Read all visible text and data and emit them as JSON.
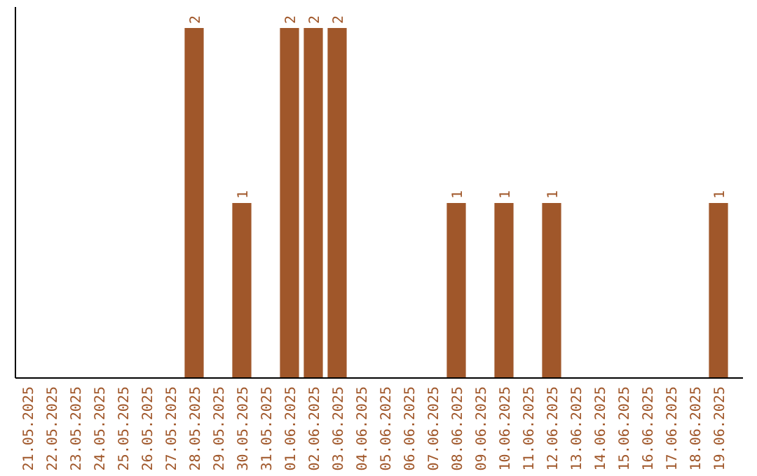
{
  "chart_data": {
    "type": "bar",
    "categories": [
      "21.05.2025",
      "22.05.2025",
      "23.05.2025",
      "24.05.2025",
      "25.05.2025",
      "26.05.2025",
      "27.05.2025",
      "28.05.2025",
      "29.05.2025",
      "30.05.2025",
      "31.05.2025",
      "01.06.2025",
      "02.06.2025",
      "03.06.2025",
      "04.06.2025",
      "05.06.2025",
      "06.06.2025",
      "07.06.2025",
      "08.06.2025",
      "09.06.2025",
      "10.06.2025",
      "11.06.2025",
      "12.06.2025",
      "13.06.2025",
      "14.06.2025",
      "15.06.2025",
      "16.06.2025",
      "17.06.2025",
      "18.06.2025",
      "19.06.2025"
    ],
    "values": [
      0,
      0,
      0,
      0,
      0,
      0,
      0,
      2,
      0,
      1,
      0,
      2,
      2,
      2,
      0,
      0,
      0,
      0,
      1,
      0,
      1,
      0,
      1,
      0,
      0,
      0,
      0,
      0,
      0,
      1
    ],
    "value_labels": [
      null,
      null,
      null,
      null,
      null,
      null,
      null,
      "2",
      null,
      "1",
      null,
      "2",
      "2",
      "2",
      null,
      null,
      null,
      null,
      "1",
      null,
      "1",
      null,
      "1",
      null,
      null,
      null,
      null,
      null,
      null,
      "1"
    ],
    "color": "#a0572a",
    "ylim": [
      0,
      2
    ]
  }
}
